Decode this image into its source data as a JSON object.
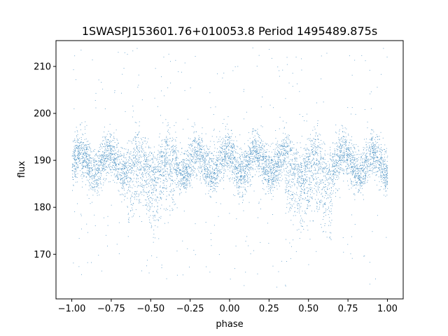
{
  "chart_data": {
    "type": "scatter",
    "title": "1SWASPJ153601.76+010053.8 Period 1495489.875s",
    "xlabel": "phase",
    "ylabel": "flux",
    "xlim": [
      -1.1,
      1.1
    ],
    "ylim": [
      160.5,
      215.5
    ],
    "x_ticks": [
      -1.0,
      -0.75,
      -0.5,
      -0.25,
      0.0,
      0.25,
      0.5,
      0.75,
      1.0
    ],
    "x_tick_labels": [
      "−1.00",
      "−0.75",
      "−0.50",
      "−0.25",
      "0.00",
      "0.25",
      "0.50",
      "0.75",
      "1.00"
    ],
    "y_ticks": [
      170,
      180,
      190,
      200,
      210
    ],
    "y_tick_labels": [
      "170",
      "180",
      "190",
      "200",
      "210"
    ],
    "grid": false,
    "series": [
      {
        "color": "#1f77b4",
        "x_range": [
          -1.0,
          1.0
        ],
        "central_band": [
          182,
          197
        ],
        "mean": 189,
        "outlier_range": [
          163,
          214
        ],
        "features": [
          {
            "x": -0.5,
            "y": 176
          },
          {
            "x": 0.5,
            "y": 176
          }
        ]
      }
    ]
  }
}
